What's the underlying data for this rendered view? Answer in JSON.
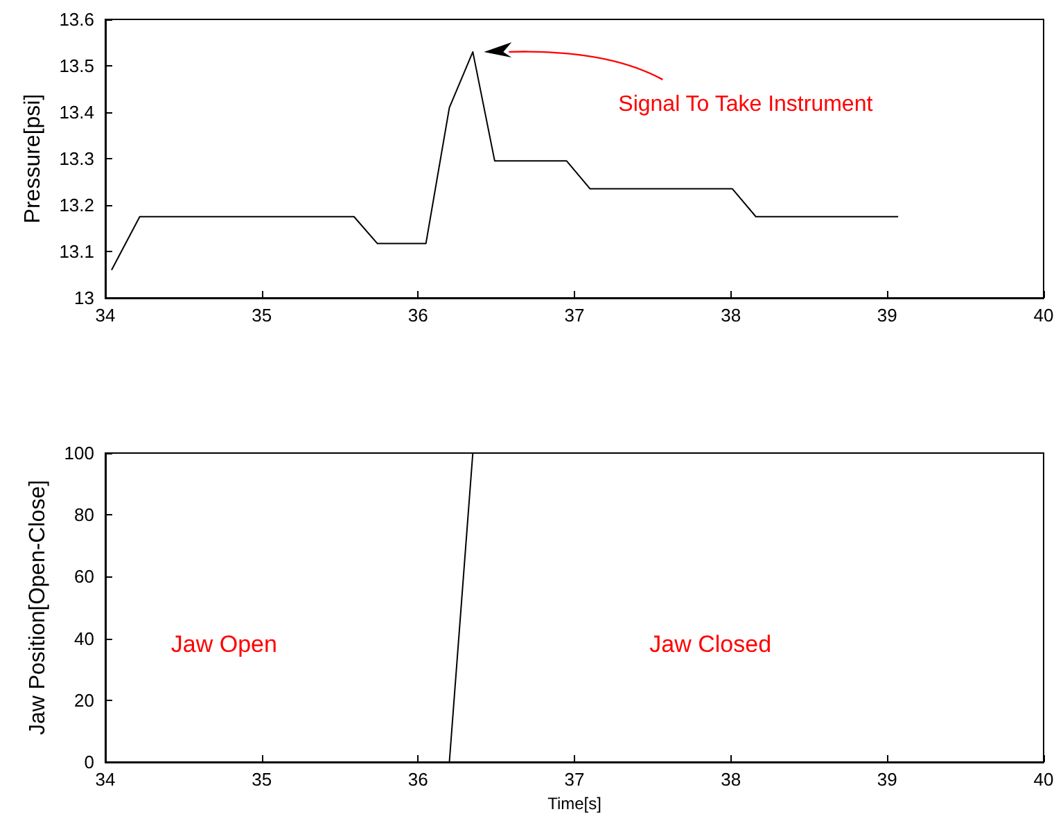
{
  "chart_data": [
    {
      "type": "line",
      "ylabel": "Pressure[psi]",
      "x": [
        34.04,
        34.22,
        35.59,
        35.74,
        36.05,
        36.2,
        36.35,
        36.49,
        36.95,
        37.1,
        38.01,
        38.16,
        39.07
      ],
      "series": [
        {
          "color": "#000000",
          "values": [
            13.06,
            13.175,
            13.175,
            13.117,
            13.117,
            13.41,
            13.53,
            13.295,
            13.295,
            13.235,
            13.235,
            13.175,
            13.175
          ]
        }
      ],
      "xlim": [
        34,
        40
      ],
      "xticks": [
        34,
        35,
        36,
        37,
        38,
        39,
        40
      ],
      "ylim": [
        13,
        13.6
      ],
      "yticks": [
        13,
        13.1,
        13.2,
        13.3,
        13.4,
        13.5,
        13.6
      ],
      "annotations": [
        "Signal To Take Instrument"
      ],
      "grid": false,
      "marker": "none",
      "line_style": "solid"
    },
    {
      "type": "line",
      "xlabel": "Time[s]",
      "ylabel": "Jaw Position[Open-Close]",
      "x": [
        34.04,
        36.2,
        36.35,
        39.07
      ],
      "series": [
        {
          "color": "#000000",
          "values": [
            0,
            0,
            100,
            100
          ]
        }
      ],
      "xlim": [
        34,
        40
      ],
      "xticks": [
        34,
        35,
        36,
        37,
        38,
        39,
        40
      ],
      "ylim": [
        0,
        100
      ],
      "yticks": [
        0,
        20,
        40,
        60,
        80,
        100
      ],
      "annotations": [
        "Jaw Open",
        "Jaw Closed"
      ],
      "grid": false,
      "marker": "none",
      "line_style": "solid"
    }
  ]
}
